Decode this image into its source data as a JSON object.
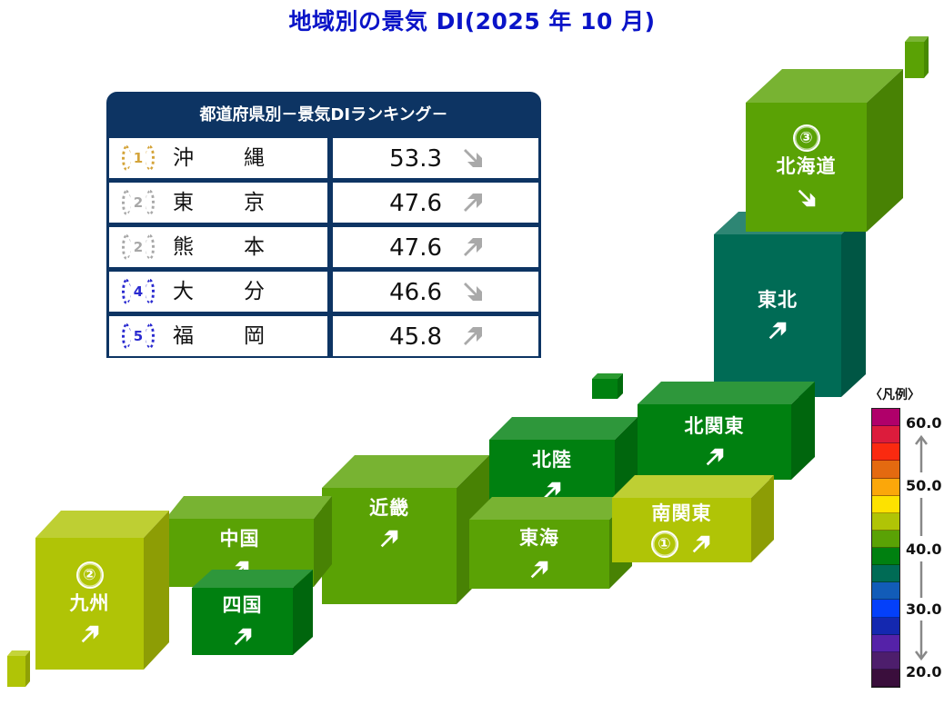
{
  "title": "地域別の景気 DI(2025 年 10 月)",
  "ranking": {
    "heading": "都道府県別－景気DIランキング－",
    "rows": [
      {
        "rank": "1",
        "pref_a": "沖",
        "pref_b": "縄",
        "value": "53.3",
        "trend": "down",
        "medal_color": "#d4a43a"
      },
      {
        "rank": "2",
        "pref_a": "東",
        "pref_b": "京",
        "value": "47.6",
        "trend": "up",
        "medal_color": "#a8a8a8"
      },
      {
        "rank": "2",
        "pref_a": "熊",
        "pref_b": "本",
        "value": "47.6",
        "trend": "up",
        "medal_color": "#a8a8a8"
      },
      {
        "rank": "4",
        "pref_a": "大",
        "pref_b": "分",
        "value": "46.6",
        "trend": "down",
        "medal_color": "#2a2ad0"
      },
      {
        "rank": "5",
        "pref_a": "福",
        "pref_b": "岡",
        "value": "45.8",
        "trend": "up",
        "medal_color": "#2a2ad0"
      }
    ]
  },
  "regions": {
    "hokkaido": {
      "name": "北海道",
      "rank_mark": "③",
      "trend": "down",
      "color": "#5aa205"
    },
    "tohoku": {
      "name": "東北",
      "trend": "up",
      "color": "#006b55"
    },
    "kitakanto": {
      "name": "北関東",
      "trend": "up",
      "color": "#008010"
    },
    "minamikanto": {
      "name": "南関東",
      "rank_mark": "①",
      "trend": "up",
      "color": "#b0c406"
    },
    "hokuriku": {
      "name": "北陸",
      "trend": "up",
      "color": "#008010"
    },
    "tokai": {
      "name": "東海",
      "trend": "up",
      "color": "#5aa205"
    },
    "kinki": {
      "name": "近畿",
      "trend": "up",
      "color": "#5aa205"
    },
    "chugoku": {
      "name": "中国",
      "trend": "up",
      "color": "#5aa205"
    },
    "shikoku": {
      "name": "四国",
      "trend": "up",
      "color": "#008010"
    },
    "kyushu": {
      "name": "九州",
      "rank_mark": "②",
      "trend": "up",
      "color": "#b0c406"
    }
  },
  "legend": {
    "title": "〈凡例〉",
    "ticks": [
      "60.0",
      "50.0",
      "40.0",
      "30.0",
      "20.0"
    ],
    "colors": [
      "#b0006a",
      "#dc1c3c",
      "#fa2a10",
      "#e46a10",
      "#fba70a",
      "#fde200",
      "#b0c406",
      "#5aa205",
      "#008010",
      "#006b55",
      "#125cb8",
      "#0440fa",
      "#1428b0",
      "#5522a8",
      "#4d1e6c",
      "#3a0e3c"
    ]
  }
}
